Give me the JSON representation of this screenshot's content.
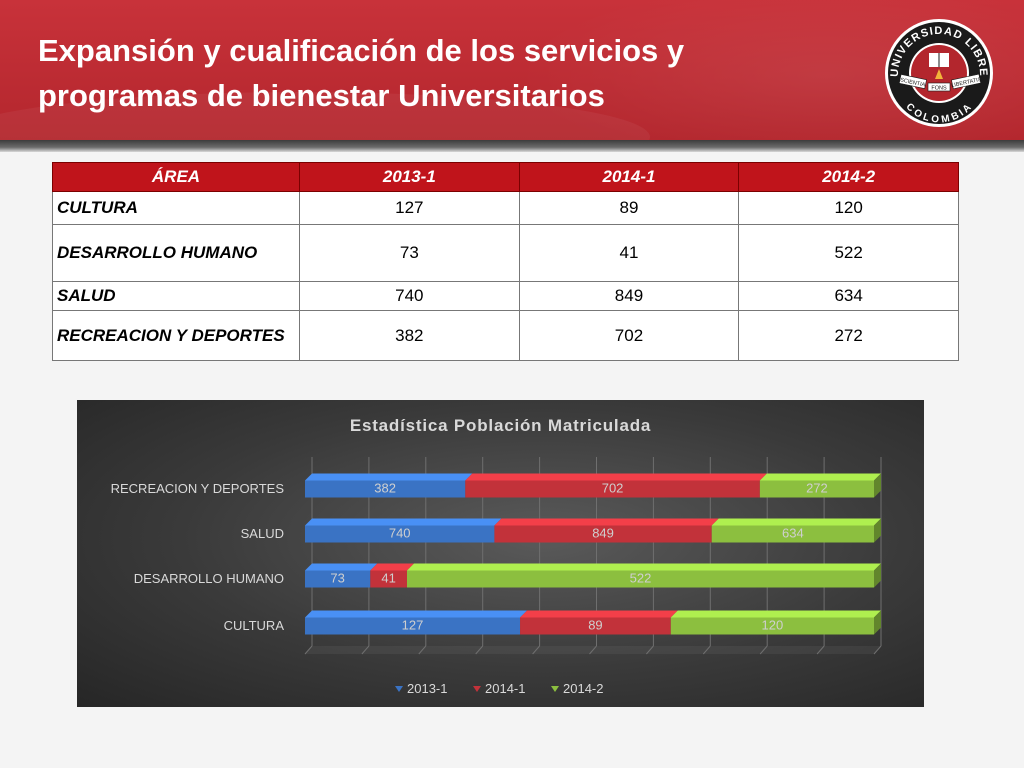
{
  "slide": {
    "title_line1": "Expansión y cualificación de los servicios y",
    "title_line2": "programas de bienestar Universitarios"
  },
  "logo": {
    "top_text": "UNIVERSIDAD LIBRE",
    "bottom_text": "COLOMBIA",
    "left_banner": "SCIENTIA",
    "center_banner": "FONS",
    "right_banner": "LIBERTATIS"
  },
  "table": {
    "headers": [
      "ÁREA",
      "2013-1",
      "2014-1",
      "2014-2"
    ],
    "rows": [
      {
        "area": "CULTURA",
        "v1": "127",
        "v2": "89",
        "v3": "120"
      },
      {
        "area": "DESARROLLO HUMANO",
        "v1": "73",
        "v2": "41",
        "v3": "522"
      },
      {
        "area": "SALUD",
        "v1": "740",
        "v2": "849",
        "v3": "634"
      },
      {
        "area": "RECREACION Y DEPORTES",
        "v1": "382",
        "v2": "702",
        "v3": "272"
      }
    ]
  },
  "chart_data": {
    "type": "bar",
    "orientation": "horizontal",
    "stacked": "100%",
    "title": "Estadística Población Matriculada",
    "categories": [
      "RECREACION Y DEPORTES",
      "SALUD",
      "DESARROLLO HUMANO",
      "CULTURA"
    ],
    "series": [
      {
        "name": "2013-1",
        "color": "#3a73c4",
        "values": [
          382,
          740,
          73,
          127
        ]
      },
      {
        "name": "2014-1",
        "color": "#c2323a",
        "values": [
          702,
          849,
          41,
          89
        ]
      },
      {
        "name": "2014-2",
        "color": "#8cbf3f",
        "values": [
          272,
          634,
          522,
          120
        ]
      }
    ],
    "grid": true,
    "legend_position": "bottom"
  }
}
